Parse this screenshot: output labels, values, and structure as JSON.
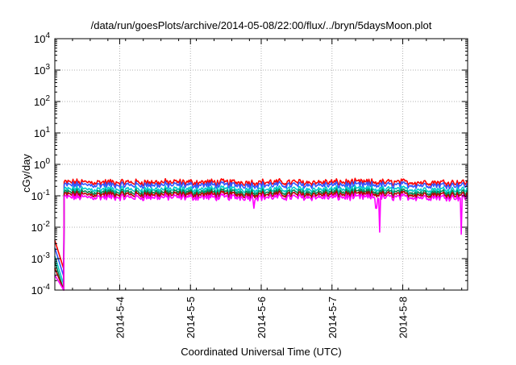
{
  "chart_data": {
    "type": "line",
    "title": "/data/run/goesPlots/archive/2014-05-08/22:00/flux/../bryn/5daysMoon.plot",
    "xlabel": "Coordinated Universal Time (UTC)",
    "ylabel": "cGy/day",
    "yscale": "log",
    "ylim": [
      0.0001,
      10000
    ],
    "y_ticks": [
      {
        "base": "10",
        "exp": "-4",
        "value": 0.0001
      },
      {
        "base": "10",
        "exp": "-3",
        "value": 0.001
      },
      {
        "base": "10",
        "exp": "-2",
        "value": 0.01
      },
      {
        "base": "10",
        "exp": "-1",
        "value": 0.1
      },
      {
        "base": "10",
        "exp": "0",
        "value": 1
      },
      {
        "base": "10",
        "exp": "1",
        "value": 10
      },
      {
        "base": "10",
        "exp": "2",
        "value": 100
      },
      {
        "base": "10",
        "exp": "3",
        "value": 1000
      },
      {
        "base": "10",
        "exp": "4",
        "value": 10000
      }
    ],
    "xlim": [
      "2014-05-03 02:00",
      "2014-05-08 22:00"
    ],
    "x_ticks": [
      "2014-5-4",
      "2014-5-5",
      "2014-5-6",
      "2014-5-7",
      "2014-5-8"
    ],
    "grid": true,
    "series": [
      {
        "color": "#ff0000",
        "level": 0.27,
        "start": 0.0038
      },
      {
        "color": "#3355ff",
        "level": 0.22,
        "start": 0.0022
      },
      {
        "color": "#00cccc",
        "level": 0.16,
        "start": 0.0012
      },
      {
        "color": "#008855",
        "level": 0.13,
        "start": 0.0008
      },
      {
        "color": "#b40000",
        "level": 0.11,
        "start": 0.0005
      },
      {
        "color": "#ff00ff",
        "level": 0.09,
        "start": 0.0003
      }
    ],
    "dips": [
      {
        "time": "2014-05-05 21:30",
        "value": 0.04
      },
      {
        "time": "2014-05-07 15:00",
        "value": 0.04
      },
      {
        "time": "2014-05-07 16:10",
        "value": 0.007
      },
      {
        "time": "2014-05-08 19:50",
        "value": 0.006
      }
    ]
  }
}
